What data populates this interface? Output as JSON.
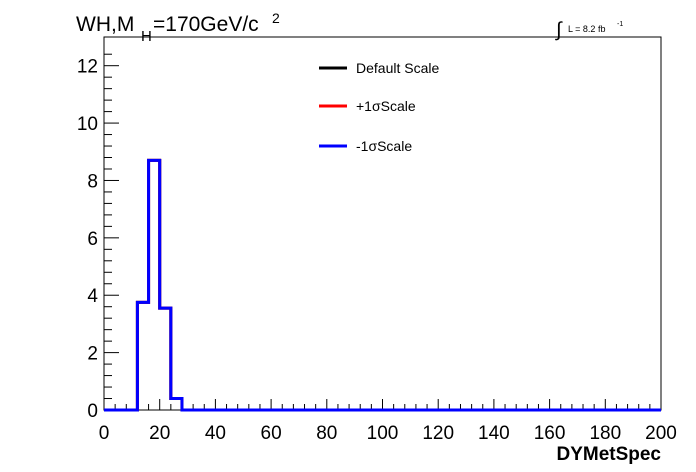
{
  "chart_data": {
    "type": "line",
    "title": {
      "main": "WH,M",
      "sub": "H",
      "rest": "=170GeV/c",
      "sup": "2"
    },
    "lumi": {
      "integral": "∫",
      "text": "L = 8.2 fb",
      "sup": "-1"
    },
    "xlabel": "DYMetSpec",
    "xlim": [
      0,
      200
    ],
    "ylim": [
      0,
      13
    ],
    "xticks": [
      "0",
      "20",
      "40",
      "60",
      "80",
      "100",
      "120",
      "140",
      "160",
      "180",
      "200"
    ],
    "yticks": [
      "0",
      "2",
      "4",
      "6",
      "8",
      "10",
      "12"
    ],
    "bin_width": 4,
    "bins_x_start": [
      0,
      4,
      8,
      12,
      16,
      20,
      24,
      28,
      32
    ],
    "series": [
      {
        "name": "Default Scale",
        "color": "#000000",
        "values": [
          0,
          0,
          0,
          3.75,
          8.7,
          3.55,
          0.4,
          0,
          0
        ]
      },
      {
        "name": "+1σScale",
        "color": "#ff0000",
        "values": [
          0,
          0,
          0,
          3.75,
          8.7,
          3.55,
          0.4,
          0,
          0
        ]
      },
      {
        "name": "-1σScale",
        "color": "#0000ff",
        "values": [
          0,
          0,
          0,
          3.75,
          8.7,
          3.55,
          0.4,
          0,
          0
        ]
      }
    ],
    "legend_position": "top-center",
    "grid": false
  }
}
